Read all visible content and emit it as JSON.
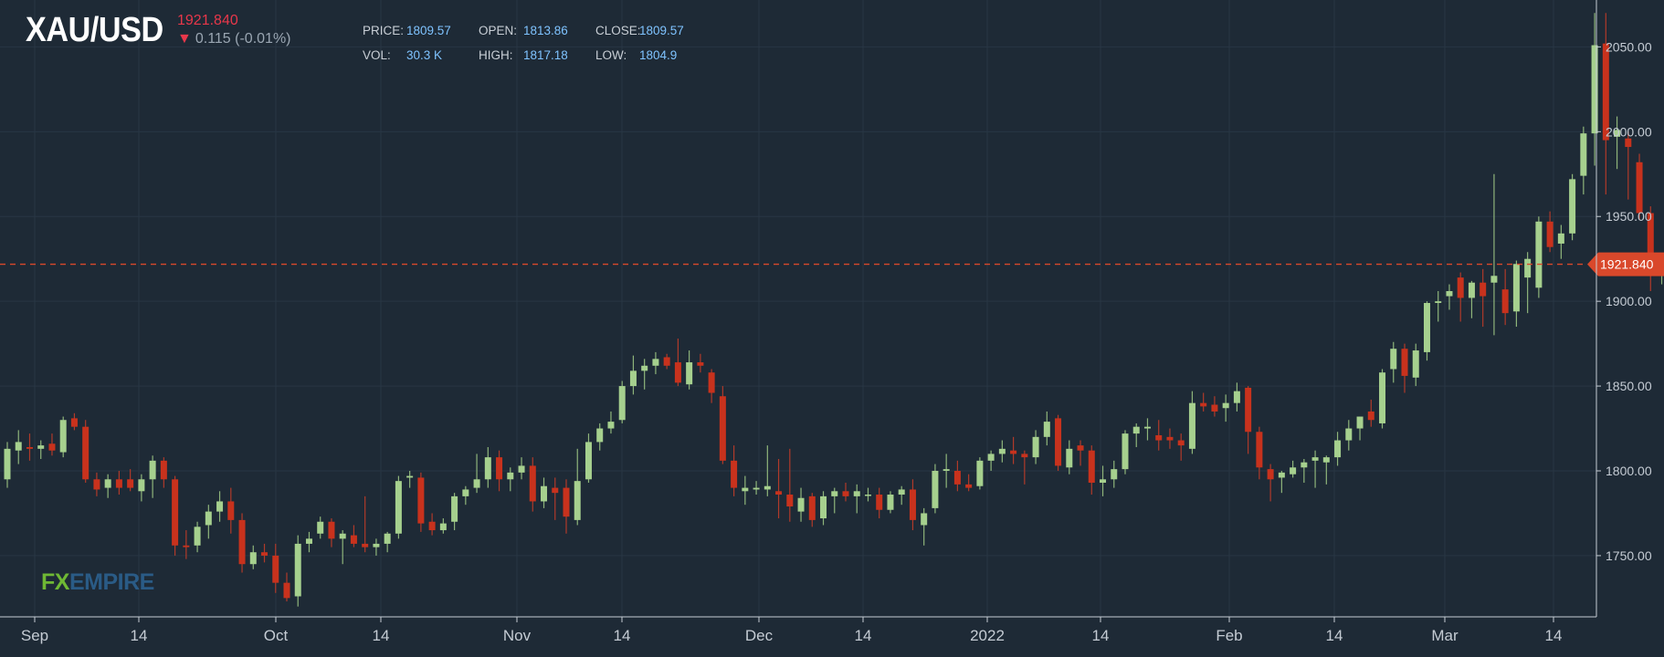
{
  "header": {
    "symbol": "XAU/USD",
    "last_price": "1921.840",
    "change_arrow": "▼",
    "change": "0.115 (-0.01%)",
    "stats": {
      "price_label": "PRICE:",
      "price": "1809.57",
      "open_label": "OPEN:",
      "open": "1813.86",
      "close_label": "CLOSE:",
      "close": "1809.57",
      "vol_label": "VOL:",
      "vol": "30.3 K",
      "high_label": "HIGH:",
      "high": "1817.18",
      "low_label": "LOW:",
      "low": "1804.9"
    }
  },
  "watermark": {
    "fx": "FX",
    "empire": "EMPIRE"
  },
  "colors": {
    "background": "#1e2a36",
    "up": "#a6d08e",
    "down": "#c8321d",
    "price_line": "#d9482b",
    "axis_text": "#c5ccd4"
  },
  "chart_data": {
    "type": "candlestick",
    "title": "XAU/USD",
    "ylim": [
      1710,
      2075
    ],
    "y_ticks": [
      1750,
      1800,
      1850,
      1900,
      1950,
      2000,
      2050
    ],
    "y_tick_labels": [
      "1750.00",
      "1800.00",
      "1850.00",
      "1900.00",
      "1950.00",
      "2000.00",
      "2050.00"
    ],
    "x_tick_labels": [
      "Sep",
      "14",
      "Oct",
      "14",
      "Nov",
      "14",
      "Dec",
      "14",
      "2022",
      "14",
      "Feb",
      "14",
      "Mar",
      "14"
    ],
    "current_price": 1921.84,
    "current_price_label": "1921.840",
    "grid": true,
    "candles": [
      [
        1795,
        1817,
        1790,
        1813
      ],
      [
        1812,
        1824,
        1804,
        1817
      ],
      [
        1814,
        1822,
        1806,
        1813
      ],
      [
        1813,
        1818,
        1807,
        1815
      ],
      [
        1816,
        1822,
        1809,
        1812
      ],
      [
        1811,
        1832,
        1808,
        1830
      ],
      [
        1831,
        1834,
        1824,
        1826
      ],
      [
        1826,
        1830,
        1793,
        1795
      ],
      [
        1795,
        1799,
        1785,
        1789
      ],
      [
        1790,
        1798,
        1784,
        1795
      ],
      [
        1795,
        1800,
        1786,
        1790
      ],
      [
        1795,
        1801,
        1788,
        1790
      ],
      [
        1788,
        1798,
        1782,
        1795
      ],
      [
        1795,
        1809,
        1784,
        1806
      ],
      [
        1806,
        1808,
        1790,
        1795
      ],
      [
        1795,
        1797,
        1750,
        1756
      ],
      [
        1756,
        1765,
        1748,
        1755
      ],
      [
        1756,
        1770,
        1752,
        1767
      ],
      [
        1768,
        1780,
        1760,
        1776
      ],
      [
        1776,
        1788,
        1770,
        1782
      ],
      [
        1782,
        1790,
        1763,
        1771
      ],
      [
        1771,
        1775,
        1740,
        1745
      ],
      [
        1745,
        1756,
        1742,
        1752
      ],
      [
        1752,
        1757,
        1746,
        1750
      ],
      [
        1750,
        1757,
        1728,
        1734
      ],
      [
        1734,
        1740,
        1723,
        1725
      ],
      [
        1726,
        1762,
        1720,
        1757
      ],
      [
        1757,
        1764,
        1752,
        1760
      ],
      [
        1763,
        1773,
        1760,
        1770
      ],
      [
        1770,
        1772,
        1755,
        1760
      ],
      [
        1760,
        1765,
        1745,
        1763
      ],
      [
        1762,
        1768,
        1755,
        1757
      ],
      [
        1757,
        1785,
        1752,
        1755
      ],
      [
        1755,
        1760,
        1750,
        1757
      ],
      [
        1757,
        1764,
        1752,
        1763
      ],
      [
        1763,
        1797,
        1760,
        1794
      ],
      [
        1796,
        1800,
        1790,
        1797
      ],
      [
        1796,
        1799,
        1764,
        1769
      ],
      [
        1770,
        1775,
        1762,
        1765
      ],
      [
        1765,
        1772,
        1763,
        1769
      ],
      [
        1770,
        1787,
        1765,
        1785
      ],
      [
        1785,
        1791,
        1780,
        1789
      ],
      [
        1790,
        1810,
        1787,
        1795
      ],
      [
        1795,
        1814,
        1790,
        1808
      ],
      [
        1808,
        1812,
        1788,
        1795
      ],
      [
        1795,
        1802,
        1788,
        1799
      ],
      [
        1799,
        1808,
        1795,
        1803
      ],
      [
        1803,
        1808,
        1776,
        1782
      ],
      [
        1782,
        1796,
        1778,
        1791
      ],
      [
        1790,
        1796,
        1771,
        1787
      ],
      [
        1790,
        1795,
        1763,
        1773
      ],
      [
        1771,
        1813,
        1768,
        1794
      ],
      [
        1795,
        1822,
        1793,
        1817
      ],
      [
        1817,
        1828,
        1812,
        1825
      ],
      [
        1825,
        1835,
        1822,
        1829
      ],
      [
        1830,
        1853,
        1828,
        1850
      ],
      [
        1850,
        1868,
        1845,
        1859
      ],
      [
        1859,
        1866,
        1848,
        1862
      ],
      [
        1862,
        1870,
        1857,
        1866
      ],
      [
        1867,
        1869,
        1860,
        1862
      ],
      [
        1864,
        1878,
        1850,
        1852
      ],
      [
        1851,
        1871,
        1848,
        1864
      ],
      [
        1864,
        1869,
        1858,
        1862
      ],
      [
        1858,
        1860,
        1840,
        1846
      ],
      [
        1844,
        1850,
        1804,
        1806
      ],
      [
        1806,
        1815,
        1785,
        1790
      ],
      [
        1788,
        1797,
        1780,
        1790
      ],
      [
        1789,
        1794,
        1786,
        1790
      ],
      [
        1789,
        1815,
        1785,
        1791
      ],
      [
        1788,
        1807,
        1772,
        1786
      ],
      [
        1786,
        1813,
        1770,
        1779
      ],
      [
        1776,
        1790,
        1770,
        1784
      ],
      [
        1785,
        1787,
        1767,
        1771
      ],
      [
        1772,
        1788,
        1768,
        1785
      ],
      [
        1785,
        1790,
        1775,
        1788
      ],
      [
        1788,
        1793,
        1782,
        1785
      ],
      [
        1785,
        1792,
        1775,
        1788
      ],
      [
        1786,
        1790,
        1782,
        1786
      ],
      [
        1786,
        1790,
        1772,
        1777
      ],
      [
        1777,
        1788,
        1775,
        1786
      ],
      [
        1786,
        1791,
        1780,
        1789
      ],
      [
        1789,
        1795,
        1765,
        1771
      ],
      [
        1768,
        1778,
        1756,
        1775
      ],
      [
        1778,
        1804,
        1775,
        1800
      ],
      [
        1800,
        1810,
        1790,
        1801
      ],
      [
        1800,
        1806,
        1788,
        1792
      ],
      [
        1792,
        1798,
        1788,
        1790
      ],
      [
        1791,
        1808,
        1789,
        1806
      ],
      [
        1806,
        1812,
        1800,
        1810
      ],
      [
        1810,
        1818,
        1805,
        1813
      ],
      [
        1812,
        1820,
        1804,
        1810
      ],
      [
        1810,
        1812,
        1792,
        1808
      ],
      [
        1808,
        1824,
        1804,
        1820
      ],
      [
        1820,
        1835,
        1815,
        1829
      ],
      [
        1831,
        1833,
        1800,
        1803
      ],
      [
        1802,
        1818,
        1798,
        1813
      ],
      [
        1815,
        1818,
        1803,
        1812
      ],
      [
        1812,
        1815,
        1786,
        1793
      ],
      [
        1793,
        1803,
        1785,
        1795
      ],
      [
        1795,
        1806,
        1790,
        1801
      ],
      [
        1801,
        1824,
        1798,
        1822
      ],
      [
        1822,
        1828,
        1814,
        1826
      ],
      [
        1825,
        1831,
        1818,
        1826
      ],
      [
        1821,
        1830,
        1812,
        1818
      ],
      [
        1820,
        1825,
        1813,
        1818
      ],
      [
        1818,
        1822,
        1806,
        1815
      ],
      [
        1813,
        1847,
        1810,
        1840
      ],
      [
        1840,
        1846,
        1835,
        1838
      ],
      [
        1839,
        1844,
        1832,
        1835
      ],
      [
        1837,
        1845,
        1829,
        1840
      ],
      [
        1840,
        1852,
        1835,
        1847
      ],
      [
        1849,
        1850,
        1810,
        1823
      ],
      [
        1823,
        1826,
        1795,
        1802
      ],
      [
        1801,
        1804,
        1782,
        1795
      ],
      [
        1796,
        1800,
        1787,
        1799
      ],
      [
        1798,
        1806,
        1796,
        1802
      ],
      [
        1802,
        1807,
        1793,
        1805
      ],
      [
        1806,
        1812,
        1790,
        1808
      ],
      [
        1805,
        1809,
        1792,
        1808
      ],
      [
        1808,
        1823,
        1803,
        1818
      ],
      [
        1818,
        1830,
        1812,
        1825
      ],
      [
        1825,
        1832,
        1818,
        1832
      ],
      [
        1835,
        1842,
        1826,
        1830
      ],
      [
        1828,
        1860,
        1825,
        1858
      ],
      [
        1860,
        1876,
        1852,
        1872
      ],
      [
        1872,
        1875,
        1846,
        1856
      ],
      [
        1855,
        1875,
        1850,
        1871
      ],
      [
        1870,
        1900,
        1865,
        1899
      ],
      [
        1899,
        1906,
        1888,
        1900
      ],
      [
        1903,
        1910,
        1895,
        1906
      ],
      [
        1914,
        1917,
        1888,
        1902
      ],
      [
        1902,
        1912,
        1890,
        1911
      ],
      [
        1911,
        1919,
        1885,
        1903
      ],
      [
        1911,
        1975,
        1880,
        1915
      ],
      [
        1907,
        1919,
        1886,
        1893
      ],
      [
        1894,
        1924,
        1885,
        1922
      ],
      [
        1914,
        1929,
        1893,
        1925
      ],
      [
        1908,
        1950,
        1902,
        1947
      ],
      [
        1947,
        1953,
        1929,
        1932
      ],
      [
        1934,
        1945,
        1925,
        1940
      ],
      [
        1940,
        1975,
        1936,
        1972
      ],
      [
        1974,
        2003,
        1963,
        1999
      ],
      [
        1999,
        2070,
        1980,
        2051
      ],
      [
        2052,
        2070,
        1963,
        1995
      ],
      [
        1997,
        2009,
        1978,
        2001
      ],
      [
        1996,
        2000,
        1960,
        1991
      ],
      [
        1982,
        1987,
        1948,
        1952
      ],
      [
        1952,
        1956,
        1906,
        1918
      ],
      [
        1918,
        1923,
        1910,
        1922
      ]
    ]
  }
}
